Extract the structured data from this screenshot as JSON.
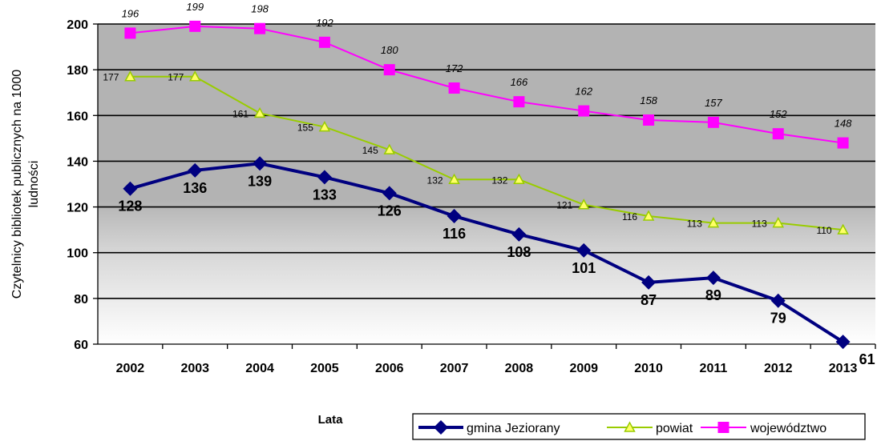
{
  "chart_data": {
    "type": "line",
    "categories": [
      "2002",
      "2003",
      "2004",
      "2005",
      "2006",
      "2007",
      "2008",
      "2009",
      "2010",
      "2011",
      "2012",
      "2013"
    ],
    "xlabel": "Lata",
    "ylabel": "Czytelnicy bibliotek publicznych na 1000 ludności",
    "ylim": [
      60,
      200
    ],
    "yticks": [
      60,
      80,
      100,
      120,
      140,
      160,
      180,
      200
    ],
    "grid": true,
    "legend_position": "bottom",
    "series": [
      {
        "name": "gmina Jeziorany",
        "values": [
          128,
          136,
          139,
          133,
          126,
          116,
          108,
          101,
          87,
          89,
          79,
          61
        ],
        "color": "#000080",
        "marker": "diamond"
      },
      {
        "name": "powiat",
        "values": [
          177,
          177,
          161,
          155,
          145,
          132,
          132,
          121,
          116,
          113,
          113,
          110
        ],
        "color": "#99CC00",
        "marker": "triangle"
      },
      {
        "name": "województwo",
        "values": [
          196,
          199,
          198,
          192,
          180,
          172,
          166,
          162,
          158,
          157,
          152,
          148
        ],
        "color": "#FF00FF",
        "marker": "square"
      }
    ]
  }
}
